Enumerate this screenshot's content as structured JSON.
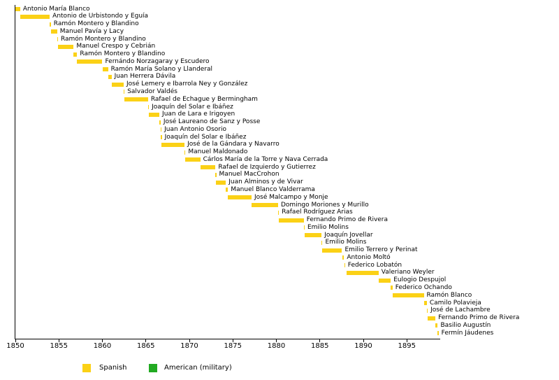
{
  "chart_data": {
    "type": "bar",
    "orientation": "horizontal-timeline",
    "title": "",
    "xlabel": "",
    "ylabel": "",
    "x_axis": {
      "min": 1850,
      "max": 1898.8,
      "ticks": [
        1850,
        1855,
        1860,
        1865,
        1870,
        1875,
        1880,
        1885,
        1890,
        1895
      ],
      "grid": false
    },
    "legend": [
      {
        "label": "Spanish",
        "color": "#FBD116"
      },
      {
        "label": "American (military)",
        "color": "#22AA22"
      }
    ],
    "bar_color_key": "Spanish",
    "terms": [
      {
        "name": "Antonio María Blanco",
        "start": 1850.0,
        "end": 1850.55,
        "group": "Spanish"
      },
      {
        "name": "Antonio de Urbistondo y Eguía",
        "start": 1850.55,
        "end": 1853.95,
        "group": "Spanish"
      },
      {
        "name": "Ramón Montero y Blandino",
        "start": 1853.95,
        "end": 1854.08,
        "group": "Spanish"
      },
      {
        "name": "Manuel Pavía y Lacy",
        "start": 1854.08,
        "end": 1854.8,
        "group": "Spanish"
      },
      {
        "name": "Ramón Montero y Blandino",
        "start": 1854.8,
        "end": 1854.88,
        "group": "Spanish"
      },
      {
        "name": "Manuel Crespo y Cebrián",
        "start": 1854.88,
        "end": 1856.7,
        "group": "Spanish"
      },
      {
        "name": "Ramón Montero y Blandino",
        "start": 1856.7,
        "end": 1857.1,
        "group": "Spanish"
      },
      {
        "name": "Fernándo Norzagaray y Escudero",
        "start": 1857.1,
        "end": 1860.0,
        "group": "Spanish"
      },
      {
        "name": "Ramón María Solano y Llanderal",
        "start": 1860.0,
        "end": 1860.65,
        "group": "Spanish"
      },
      {
        "name": "Juan Herrera Dávila",
        "start": 1860.65,
        "end": 1861.05,
        "group": "Spanish"
      },
      {
        "name": "José Lemery e Ibarrola Ney y González",
        "start": 1861.05,
        "end": 1862.45,
        "group": "Spanish"
      },
      {
        "name": "Salvador Valdés",
        "start": 1862.45,
        "end": 1862.5,
        "group": "Spanish"
      },
      {
        "name": "Rafael de Echague y Bermingham",
        "start": 1862.5,
        "end": 1865.25,
        "group": "Spanish"
      },
      {
        "name": "Joaquín del Solar e Ibáñez",
        "start": 1865.25,
        "end": 1865.33,
        "group": "Spanish"
      },
      {
        "name": "Juan de Lara e Irigoyen",
        "start": 1865.33,
        "end": 1866.55,
        "group": "Spanish"
      },
      {
        "name": "José Laureano de Sanz y Posse",
        "start": 1866.55,
        "end": 1866.7,
        "group": "Spanish"
      },
      {
        "name": "Juan Antonio Osorio",
        "start": 1866.7,
        "end": 1866.74,
        "group": "Spanish"
      },
      {
        "name": "Joaquín del Solar e Ibáñez",
        "start": 1866.74,
        "end": 1866.82,
        "group": "Spanish"
      },
      {
        "name": "José de la Gándara y Navarro",
        "start": 1866.82,
        "end": 1869.45,
        "group": "Spanish"
      },
      {
        "name": "Manuel Maldonado",
        "start": 1869.45,
        "end": 1869.5,
        "group": "Spanish"
      },
      {
        "name": "Cárlos María de la Torre y Nava Cerrada",
        "start": 1869.5,
        "end": 1871.25,
        "group": "Spanish"
      },
      {
        "name": "Rafael de Izquierdo y Gutierrez",
        "start": 1871.25,
        "end": 1873.0,
        "group": "Spanish"
      },
      {
        "name": "Manuel MacCrohon",
        "start": 1873.0,
        "end": 1873.06,
        "group": "Spanish"
      },
      {
        "name": "Juan Alminos y de Vivar",
        "start": 1873.06,
        "end": 1874.2,
        "group": "Spanish"
      },
      {
        "name": "Manuel Blanco Valderrama",
        "start": 1874.2,
        "end": 1874.45,
        "group": "Spanish"
      },
      {
        "name": "José Malcampo y Monje",
        "start": 1874.45,
        "end": 1877.15,
        "group": "Spanish"
      },
      {
        "name": "Domingo Moriones y Murillo",
        "start": 1877.15,
        "end": 1880.2,
        "group": "Spanish"
      },
      {
        "name": "Rafael Rodríguez Arias",
        "start": 1880.2,
        "end": 1880.28,
        "group": "Spanish"
      },
      {
        "name": "Fernando Primo de Rivera",
        "start": 1880.28,
        "end": 1883.15,
        "group": "Spanish"
      },
      {
        "name": "Emilio Molins",
        "start": 1883.15,
        "end": 1883.25,
        "group": "Spanish"
      },
      {
        "name": "Joaquín Jovellar",
        "start": 1883.25,
        "end": 1885.2,
        "group": "Spanish"
      },
      {
        "name": "Emilio Molins",
        "start": 1885.2,
        "end": 1885.24,
        "group": "Spanish"
      },
      {
        "name": "Emilio Terrero y Perinat",
        "start": 1885.27,
        "end": 1887.55,
        "group": "Spanish"
      },
      {
        "name": "Antonio Moltó",
        "start": 1887.58,
        "end": 1887.78,
        "group": "Spanish"
      },
      {
        "name": "Federico Lobatón",
        "start": 1887.8,
        "end": 1887.88,
        "group": "Spanish"
      },
      {
        "name": "Valeriano Weyler",
        "start": 1888.05,
        "end": 1891.75,
        "group": "Spanish"
      },
      {
        "name": "Eulogio Despujol",
        "start": 1891.75,
        "end": 1893.15,
        "group": "Spanish"
      },
      {
        "name": "Federico Ochando",
        "start": 1893.15,
        "end": 1893.35,
        "group": "Spanish"
      },
      {
        "name": "Ramón Blanco",
        "start": 1893.35,
        "end": 1896.95,
        "group": "Spanish"
      },
      {
        "name": "Camilo Polavieja",
        "start": 1896.95,
        "end": 1897.3,
        "group": "Spanish"
      },
      {
        "name": "José de Lachambre",
        "start": 1897.3,
        "end": 1897.33,
        "group": "Spanish"
      },
      {
        "name": "Fernando Primo de Rivera",
        "start": 1897.35,
        "end": 1898.28,
        "group": "Spanish"
      },
      {
        "name": "Basilio Augustín",
        "start": 1898.28,
        "end": 1898.55,
        "group": "Spanish"
      },
      {
        "name": "Fermín Jáudenes",
        "start": 1898.55,
        "end": 1898.62,
        "group": "Spanish"
      }
    ]
  },
  "colors": {
    "bar_spanish": "#FBD116",
    "bar_american": "#22AA22",
    "axis": "#000000",
    "text": "#000000",
    "background": "#FFFFFF"
  }
}
